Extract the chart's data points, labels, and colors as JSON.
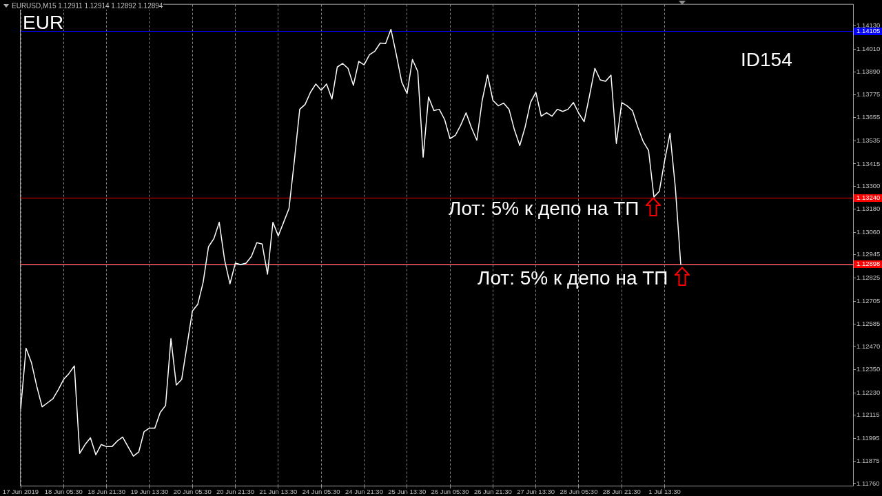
{
  "chart_data": {
    "type": "line",
    "title": "EURUSD,M15 1.12911 1.12914 1.12892 1.12894",
    "subtitle": "EUR",
    "categories": [
      "17 Jun 2019",
      null,
      null,
      null,
      null,
      null,
      null,
      null,
      "18 Jun 05:30",
      null,
      null,
      null,
      null,
      null,
      null,
      null,
      "18 Jun 21:30",
      null,
      null,
      null,
      null,
      null,
      null,
      null,
      "19 Jun 13:30",
      null,
      null,
      null,
      null,
      null,
      null,
      null,
      "20 Jun 05:30",
      null,
      null,
      null,
      null,
      null,
      null,
      null,
      "20 Jun 21:30",
      null,
      null,
      null,
      null,
      null,
      null,
      null,
      "21 Jun 13:30",
      null,
      null,
      null,
      null,
      null,
      null,
      null,
      "24 Jun 05:30",
      null,
      null,
      null,
      null,
      null,
      null,
      null,
      "24 Jun 21:30",
      null,
      null,
      null,
      null,
      null,
      null,
      null,
      "25 Jun 13:30",
      null,
      null,
      null,
      null,
      null,
      null,
      null,
      "26 Jun 05:30",
      null,
      null,
      null,
      null,
      null,
      null,
      null,
      "26 Jun 21:30",
      null,
      null,
      null,
      null,
      null,
      null,
      null,
      "27 Jun 13:30",
      null,
      null,
      null,
      null,
      null,
      null,
      null,
      "28 Jun 05:30",
      null,
      null,
      null,
      null,
      null,
      null,
      null,
      "28 Jun 21:30",
      null,
      null,
      null,
      null,
      null,
      null,
      null,
      "1 Jul 13:30",
      null,
      null,
      null
    ],
    "values": [
      1.12146,
      1.12461,
      1.12387,
      1.12263,
      1.12157,
      1.12178,
      1.12199,
      1.12245,
      1.12299,
      1.1233,
      1.12369,
      1.11916,
      1.11962,
      1.11997,
      1.11909,
      1.11962,
      1.11951,
      1.11951,
      1.1198,
      1.12001,
      1.11951,
      1.11902,
      1.11923,
      1.12029,
      1.12047,
      1.12047,
      1.12128,
      1.12164,
      1.12511,
      1.1227,
      1.12299,
      1.12476,
      1.12653,
      1.12688,
      1.12802,
      1.12986,
      1.13028,
      1.13113,
      1.12918,
      1.12794,
      1.12901,
      1.12894,
      1.12901,
      1.12936,
      1.13007,
      1.13,
      1.12844,
      1.13113,
      1.13042,
      1.13113,
      1.13184,
      1.13432,
      1.13698,
      1.13723,
      1.13786,
      1.13829,
      1.13797,
      1.13829,
      1.13751,
      1.13917,
      1.13935,
      1.1391,
      1.13822,
      1.13946,
      1.13928,
      1.13981,
      1.13999,
      1.14041,
      1.14038,
      1.14112,
      1.13981,
      1.1384,
      1.13779,
      1.13956,
      1.13893,
      1.1345,
      1.13762,
      1.13691,
      1.13698,
      1.13645,
      1.13546,
      1.13563,
      1.13616,
      1.1368,
      1.13602,
      1.13538,
      1.13744,
      1.13875,
      1.13744,
      1.13716,
      1.1373,
      1.13698,
      1.13592,
      1.1351,
      1.13606,
      1.13733,
      1.13786,
      1.13662,
      1.1368,
      1.13662,
      1.13698,
      1.13687,
      1.13698,
      1.13733,
      1.13677,
      1.13634,
      1.13769,
      1.1391,
      1.1385,
      1.13843,
      1.13875,
      1.13521,
      1.13733,
      1.13716,
      1.13691,
      1.13606,
      1.13531,
      1.13485,
      1.13244,
      1.13273,
      1.13432,
      1.13574,
      1.1329,
      1.12894
    ],
    "color": "#ffffff",
    "marker": "none",
    "grid": "x",
    "legend": false,
    "ylim": [
      1.11749,
      1.1424
    ],
    "yticks": [
      {
        "value": 1.1413,
        "label": "1.14130"
      },
      {
        "value": 1.1401,
        "label": "1.14010"
      },
      {
        "value": 1.1389,
        "label": "1.13890"
      },
      1.13775,
      1.13655,
      1.13535,
      1.13415,
      {
        "value": 1.133,
        "label": "1.13300"
      },
      {
        "value": 1.1318,
        "label": "1.13180"
      },
      {
        "value": 1.1306,
        "label": "1.13060"
      },
      1.12945,
      1.12825,
      1.12705,
      1.12585,
      {
        "value": 1.1247,
        "label": "1.12470"
      },
      {
        "value": 1.1235,
        "label": "1.12350"
      },
      {
        "value": 1.1223,
        "label": "1.12230"
      },
      1.12115,
      1.11995,
      1.11875,
      {
        "value": 1.1176,
        "label": "1.11760"
      }
    ],
    "ref_lines": [
      {
        "axis": "y",
        "value": 1.14105,
        "label": "1.14105",
        "color": "#0000ff"
      },
      {
        "axis": "y",
        "value": 1.1324,
        "label": "1.13240",
        "color": "#ff0000"
      },
      {
        "axis": "y",
        "value": 1.12898,
        "label": "1.12898",
        "color": "#ff0000"
      },
      {
        "axis": "y",
        "value": 1.12894,
        "color": "#8a94a6"
      }
    ],
    "annotations": [
      {
        "text": "Лот: 5% к депо на ТП",
        "y": 1.1324
      },
      {
        "text": "Лот: 5% к депо на ТП",
        "y": 1.1288
      },
      "ID154"
    ]
  }
}
